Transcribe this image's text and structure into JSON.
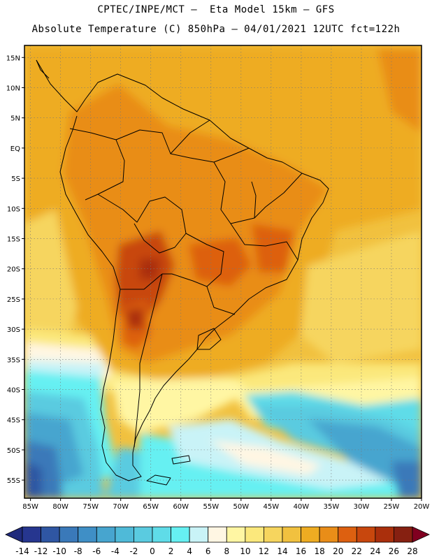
{
  "header": {
    "line1": "CPTEC/INPE/MCT –  Eta Model 15km – GFS",
    "line2": "Absolute Temperature (C) 850hPa – 04/01/2021 12UTC fct=122h"
  },
  "map": {
    "lat_range": [
      -58,
      17
    ],
    "lon_range": [
      -86,
      -20
    ],
    "lat_ticks": [
      {
        "value": 15,
        "label": "15N"
      },
      {
        "value": 10,
        "label": "10N"
      },
      {
        "value": 5,
        "label": "5N"
      },
      {
        "value": 0,
        "label": "EQ"
      },
      {
        "value": -5,
        "label": "5S"
      },
      {
        "value": -10,
        "label": "10S"
      },
      {
        "value": -15,
        "label": "15S"
      },
      {
        "value": -20,
        "label": "20S"
      },
      {
        "value": -25,
        "label": "25S"
      },
      {
        "value": -30,
        "label": "30S"
      },
      {
        "value": -35,
        "label": "35S"
      },
      {
        "value": -40,
        "label": "40S"
      },
      {
        "value": -45,
        "label": "45S"
      },
      {
        "value": -50,
        "label": "50S"
      },
      {
        "value": -55,
        "label": "55S"
      }
    ],
    "lon_ticks": [
      {
        "value": -85,
        "label": "85W"
      },
      {
        "value": -80,
        "label": "80W"
      },
      {
        "value": -75,
        "label": "75W"
      },
      {
        "value": -70,
        "label": "70W"
      },
      {
        "value": -65,
        "label": "65W"
      },
      {
        "value": -60,
        "label": "60W"
      },
      {
        "value": -55,
        "label": "55W"
      },
      {
        "value": -50,
        "label": "50W"
      },
      {
        "value": -45,
        "label": "45W"
      },
      {
        "value": -40,
        "label": "40W"
      },
      {
        "value": -35,
        "label": "35W"
      },
      {
        "value": -30,
        "label": "30W"
      },
      {
        "value": -25,
        "label": "25W"
      },
      {
        "value": -20,
        "label": "20W"
      }
    ]
  },
  "colorbar": {
    "colors": [
      "#26368f",
      "#2f56a3",
      "#3a79b9",
      "#3f8fc6",
      "#47a5cf",
      "#4fbad8",
      "#5acbe0",
      "#5fdce8",
      "#66f0f2",
      "#c9f3f7",
      "#fff6e3",
      "#fff6a3",
      "#fbe87c",
      "#f6d55e",
      "#f1c13f",
      "#eeac22",
      "#e98d18",
      "#dd6010",
      "#c8470d",
      "#aa2f0c",
      "#862011"
    ],
    "labels": [
      "-14",
      "-12",
      "-10",
      "-8",
      "-6",
      "-4",
      "-2",
      "0",
      "2",
      "4",
      "6",
      "8",
      "10",
      "12",
      "14",
      "16",
      "18",
      "20",
      "22",
      "24",
      "26",
      "28"
    ],
    "low_arrow_color": "#1f2a7c",
    "high_arrow_color": "#800020"
  }
}
